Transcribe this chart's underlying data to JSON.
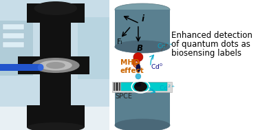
{
  "background_color": "#ffffff",
  "title_line1": "Enhanced detection",
  "title_line2": "of quantum dots as",
  "title_line3": "biosensing labels",
  "arrows_i": "i",
  "arrows_FL": "Fₗ",
  "arrows_B": "B",
  "mhd_text": "MHD\neffect",
  "mhd_color": "#cc6600",
  "spce_text": "SPCE",
  "cd2plus_color": "#00aacc",
  "cd0_color": "#000080",
  "cylinder_top_color": "#7a9faa",
  "cylinder_side_color": "#5a8090",
  "cylinder_dark_color": "#4a6878",
  "electrode_cyan": "#00cccc",
  "title_color": "#000000",
  "title_fontsize": 8.5,
  "cd_fontsize": 6.5,
  "spce_fontsize": 7,
  "mhd_fontsize": 7.5,
  "lab_bg": "#c8dde8",
  "apparatus_color": "#111111",
  "metal_color": "#888888"
}
